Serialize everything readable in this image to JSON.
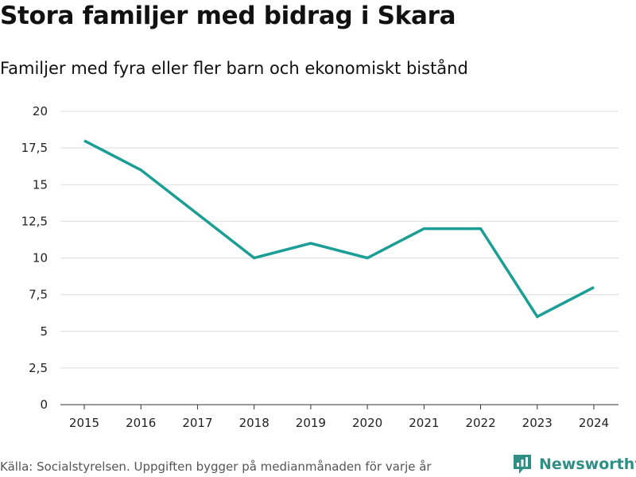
{
  "chart_data": {
    "type": "line",
    "title": "Stora familjer med bidrag i Skara",
    "subtitle": "Familjer med fyra eller fler barn och ekonomiskt bistånd",
    "categories": [
      "2015",
      "2016",
      "2017",
      "2018",
      "2019",
      "2020",
      "2021",
      "2022",
      "2023",
      "2024"
    ],
    "series": [
      {
        "name": "Familjer",
        "values": [
          18,
          16,
          13,
          10,
          11,
          10,
          12,
          12,
          6,
          8
        ]
      }
    ],
    "ylim": [
      0,
      20
    ],
    "yticks": [
      0,
      2.5,
      5,
      7.5,
      10,
      12.5,
      15,
      17.5,
      20
    ],
    "ytick_labels": [
      "0",
      "2,5",
      "5",
      "7,5",
      "10",
      "12,5",
      "15",
      "17,5",
      "20"
    ],
    "xlabel": "",
    "ylabel": "",
    "grid": true,
    "line_color": "#1a9e96"
  },
  "footer": {
    "source": "Källa: Socialstyrelsen. Uppgiften bygger på medianmånaden för varje år",
    "brand": "Newsworthy",
    "brand_icon": "newsworthy-logo-icon",
    "brand_color": "#2f8f85"
  }
}
